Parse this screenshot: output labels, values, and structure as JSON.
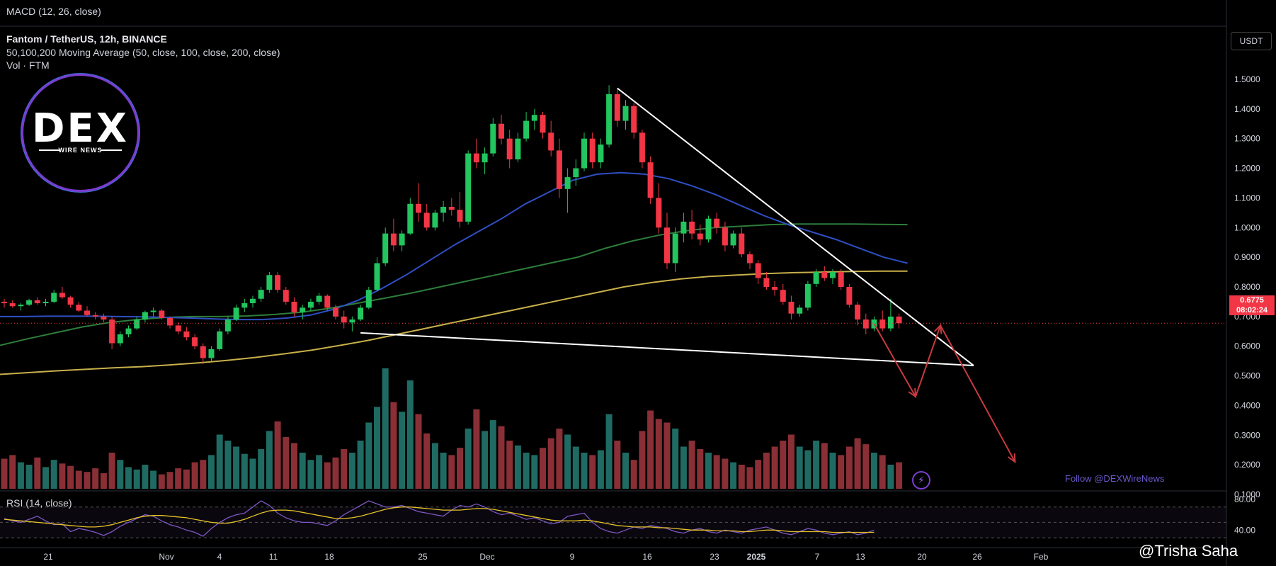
{
  "pane_titles": {
    "macd": "MACD (12, 26, close)",
    "rsi": "RSI (14, close)"
  },
  "header": {
    "symbol": "Fantom / TetherUS, 12h, BINANCE",
    "ma_study": "50,100,200 Moving Average (50, close, 100, close, 200, close)",
    "volume_study": "Vol · FTM"
  },
  "logo": {
    "text": "DEX",
    "subtext": "WIRE NEWS"
  },
  "currency_button": "USDT",
  "current_price": {
    "value": "0.6775",
    "countdown": "08:02:24",
    "color": "#f23645"
  },
  "follow_text": "Follow @DEXWireNews",
  "watermark": "@Trisha Saha",
  "colors": {
    "bull": "#22c55e",
    "bear": "#f23645",
    "ma50": "#2f4fc4",
    "ma100": "#2e7d3a",
    "ma200": "#c8b04a",
    "vol_bull": "#1f6b63",
    "vol_bear": "#8a2f36",
    "trendline": "#ffffff",
    "arrow": "#c93a3f",
    "rsi": "#7e57c2",
    "rsi_ma": "#e6c229"
  },
  "chart_data": {
    "type": "candlestick",
    "title": "Fantom / TetherUS, 12h, BINANCE",
    "timeframe": "12h",
    "price_axis": {
      "labels": [
        "1.5000",
        "1.4000",
        "1.3000",
        "1.2000",
        "1.1000",
        "1.0000",
        "0.9000",
        "0.8000",
        "0.7000",
        "0.6000",
        "0.5000",
        "0.4000",
        "0.3000",
        "0.2000",
        "0.1000"
      ],
      "range": [
        0.05,
        1.55
      ]
    },
    "time_axis": {
      "labels": [
        "21",
        "Nov",
        "4",
        "11",
        "18",
        "25",
        "Dec",
        "9",
        "16",
        "23",
        "2025",
        "7",
        "13",
        "20",
        "26",
        "Feb"
      ]
    },
    "rsi_axis": {
      "labels": [
        "80.00",
        "40.00"
      ]
    },
    "volume_max": 1.0,
    "candles": [
      [
        0.75,
        0.76,
        0.73,
        0.745
      ],
      [
        0.745,
        0.755,
        0.73,
        0.735
      ],
      [
        0.735,
        0.745,
        0.72,
        0.74
      ],
      [
        0.74,
        0.76,
        0.735,
        0.755
      ],
      [
        0.755,
        0.765,
        0.74,
        0.745
      ],
      [
        0.745,
        0.76,
        0.735,
        0.75
      ],
      [
        0.75,
        0.79,
        0.745,
        0.78
      ],
      [
        0.78,
        0.8,
        0.76,
        0.765
      ],
      [
        0.765,
        0.77,
        0.73,
        0.74
      ],
      [
        0.74,
        0.75,
        0.715,
        0.72
      ],
      [
        0.72,
        0.735,
        0.7,
        0.705
      ],
      [
        0.705,
        0.715,
        0.69,
        0.7
      ],
      [
        0.7,
        0.71,
        0.68,
        0.69
      ],
      [
        0.69,
        0.7,
        0.59,
        0.61
      ],
      [
        0.61,
        0.65,
        0.6,
        0.64
      ],
      [
        0.64,
        0.67,
        0.63,
        0.66
      ],
      [
        0.66,
        0.7,
        0.655,
        0.69
      ],
      [
        0.69,
        0.72,
        0.68,
        0.715
      ],
      [
        0.715,
        0.73,
        0.7,
        0.72
      ],
      [
        0.72,
        0.725,
        0.69,
        0.695
      ],
      [
        0.695,
        0.7,
        0.66,
        0.67
      ],
      [
        0.67,
        0.68,
        0.64,
        0.65
      ],
      [
        0.65,
        0.665,
        0.62,
        0.63
      ],
      [
        0.63,
        0.64,
        0.59,
        0.6
      ],
      [
        0.6,
        0.61,
        0.54,
        0.56
      ],
      [
        0.56,
        0.6,
        0.55,
        0.59
      ],
      [
        0.59,
        0.66,
        0.585,
        0.65
      ],
      [
        0.65,
        0.7,
        0.64,
        0.69
      ],
      [
        0.69,
        0.74,
        0.685,
        0.73
      ],
      [
        0.73,
        0.76,
        0.715,
        0.745
      ],
      [
        0.745,
        0.77,
        0.73,
        0.76
      ],
      [
        0.76,
        0.8,
        0.75,
        0.79
      ],
      [
        0.79,
        0.85,
        0.78,
        0.84
      ],
      [
        0.84,
        0.85,
        0.78,
        0.79
      ],
      [
        0.79,
        0.8,
        0.74,
        0.75
      ],
      [
        0.75,
        0.765,
        0.7,
        0.715
      ],
      [
        0.715,
        0.74,
        0.69,
        0.73
      ],
      [
        0.73,
        0.76,
        0.72,
        0.75
      ],
      [
        0.75,
        0.78,
        0.74,
        0.77
      ],
      [
        0.77,
        0.775,
        0.72,
        0.73
      ],
      [
        0.73,
        0.74,
        0.69,
        0.7
      ],
      [
        0.7,
        0.72,
        0.66,
        0.68
      ],
      [
        0.68,
        0.7,
        0.65,
        0.69
      ],
      [
        0.69,
        0.74,
        0.685,
        0.73
      ],
      [
        0.73,
        0.8,
        0.725,
        0.79
      ],
      [
        0.79,
        0.9,
        0.785,
        0.88
      ],
      [
        0.88,
        1.0,
        0.87,
        0.98
      ],
      [
        0.98,
        1.03,
        0.92,
        0.94
      ],
      [
        0.94,
        0.99,
        0.92,
        0.98
      ],
      [
        0.98,
        1.1,
        0.975,
        1.08
      ],
      [
        1.08,
        1.15,
        1.02,
        1.05
      ],
      [
        1.05,
        1.08,
        0.99,
        1.0
      ],
      [
        1.0,
        1.06,
        0.99,
        1.05
      ],
      [
        1.05,
        1.09,
        1.02,
        1.07
      ],
      [
        1.07,
        1.1,
        1.04,
        1.06
      ],
      [
        1.06,
        1.12,
        1.0,
        1.02
      ],
      [
        1.02,
        1.26,
        1.01,
        1.25
      ],
      [
        1.25,
        1.3,
        1.2,
        1.22
      ],
      [
        1.22,
        1.27,
        1.18,
        1.25
      ],
      [
        1.25,
        1.37,
        1.24,
        1.35
      ],
      [
        1.35,
        1.38,
        1.28,
        1.3
      ],
      [
        1.3,
        1.33,
        1.2,
        1.23
      ],
      [
        1.23,
        1.32,
        1.22,
        1.3
      ],
      [
        1.3,
        1.39,
        1.29,
        1.36
      ],
      [
        1.36,
        1.4,
        1.33,
        1.38
      ],
      [
        1.38,
        1.39,
        1.3,
        1.32
      ],
      [
        1.32,
        1.36,
        1.24,
        1.26
      ],
      [
        1.26,
        1.3,
        1.1,
        1.13
      ],
      [
        1.13,
        1.2,
        1.05,
        1.17
      ],
      [
        1.17,
        1.23,
        1.14,
        1.2
      ],
      [
        1.2,
        1.32,
        1.19,
        1.3
      ],
      [
        1.3,
        1.32,
        1.2,
        1.22
      ],
      [
        1.22,
        1.3,
        1.2,
        1.28
      ],
      [
        1.28,
        1.48,
        1.27,
        1.45
      ],
      [
        1.45,
        1.47,
        1.34,
        1.36
      ],
      [
        1.36,
        1.43,
        1.33,
        1.41
      ],
      [
        1.41,
        1.42,
        1.3,
        1.32
      ],
      [
        1.32,
        1.33,
        1.2,
        1.22
      ],
      [
        1.22,
        1.24,
        1.08,
        1.1
      ],
      [
        1.1,
        1.15,
        0.98,
        1.0
      ],
      [
        1.0,
        1.05,
        0.86,
        0.88
      ],
      [
        0.88,
        1.0,
        0.85,
        0.98
      ],
      [
        0.98,
        1.05,
        0.95,
        1.02
      ],
      [
        1.02,
        1.06,
        0.96,
        0.98
      ],
      [
        0.98,
        1.01,
        0.94,
        0.96
      ],
      [
        0.96,
        1.04,
        0.95,
        1.03
      ],
      [
        1.03,
        1.05,
        0.98,
        1.0
      ],
      [
        1.0,
        1.02,
        0.92,
        0.94
      ],
      [
        0.94,
        0.99,
        0.93,
        0.98
      ],
      [
        0.98,
        1.0,
        0.9,
        0.91
      ],
      [
        0.91,
        0.92,
        0.86,
        0.88
      ],
      [
        0.88,
        0.89,
        0.81,
        0.83
      ],
      [
        0.83,
        0.85,
        0.79,
        0.8
      ],
      [
        0.8,
        0.82,
        0.77,
        0.79
      ],
      [
        0.79,
        0.81,
        0.74,
        0.75
      ],
      [
        0.75,
        0.77,
        0.69,
        0.71
      ],
      [
        0.71,
        0.74,
        0.7,
        0.73
      ],
      [
        0.73,
        0.82,
        0.72,
        0.81
      ],
      [
        0.81,
        0.86,
        0.8,
        0.85
      ],
      [
        0.85,
        0.87,
        0.82,
        0.83
      ],
      [
        0.83,
        0.86,
        0.81,
        0.85
      ],
      [
        0.85,
        0.86,
        0.79,
        0.8
      ],
      [
        0.8,
        0.81,
        0.73,
        0.74
      ],
      [
        0.74,
        0.75,
        0.67,
        0.69
      ],
      [
        0.69,
        0.71,
        0.64,
        0.66
      ],
      [
        0.66,
        0.7,
        0.65,
        0.69
      ],
      [
        0.69,
        0.72,
        0.65,
        0.66
      ],
      [
        0.66,
        0.76,
        0.65,
        0.7
      ],
      [
        0.7,
        0.71,
        0.66,
        0.6775
      ]
    ],
    "ma50": [
      0.7,
      0.7,
      0.701,
      0.701,
      0.701,
      0.7,
      0.699,
      0.697,
      0.695,
      0.692,
      0.69,
      0.69,
      0.695,
      0.705,
      0.725,
      0.755,
      0.795,
      0.84,
      0.89,
      0.94,
      0.985,
      1.03,
      1.08,
      1.12,
      1.16,
      1.18,
      1.185,
      1.18,
      1.165,
      1.14,
      1.11,
      1.075,
      1.04,
      1.01,
      0.985,
      0.96,
      0.93,
      0.9,
      0.88
    ],
    "ma100": [
      0.603,
      0.625,
      0.645,
      0.665,
      0.68,
      0.69,
      0.697,
      0.7,
      0.7,
      0.702,
      0.707,
      0.715,
      0.728,
      0.745,
      0.762,
      0.78,
      0.8,
      0.82,
      0.84,
      0.86,
      0.88,
      0.9,
      0.93,
      0.955,
      0.975,
      0.99,
      1.0,
      1.005,
      1.01,
      1.012,
      1.012,
      1.012,
      1.011,
      1.01
    ],
    "ma200": [
      0.505,
      0.511,
      0.517,
      0.522,
      0.527,
      0.531,
      0.537,
      0.544,
      0.552,
      0.562,
      0.574,
      0.587,
      0.603,
      0.62,
      0.64,
      0.66,
      0.68,
      0.7,
      0.72,
      0.74,
      0.76,
      0.78,
      0.8,
      0.815,
      0.827,
      0.835,
      0.84,
      0.845,
      0.848,
      0.85,
      0.852,
      0.853,
      0.853
    ],
    "volume": [
      0.25,
      0.28,
      0.22,
      0.2,
      0.26,
      0.18,
      0.24,
      0.21,
      0.19,
      0.15,
      0.14,
      0.17,
      0.13,
      0.3,
      0.24,
      0.18,
      0.16,
      0.2,
      0.15,
      0.12,
      0.14,
      0.17,
      0.16,
      0.22,
      0.24,
      0.28,
      0.45,
      0.4,
      0.35,
      0.29,
      0.25,
      0.33,
      0.48,
      0.56,
      0.43,
      0.38,
      0.3,
      0.24,
      0.28,
      0.22,
      0.26,
      0.33,
      0.3,
      0.4,
      0.55,
      0.68,
      1.0,
      0.72,
      0.64,
      0.9,
      0.62,
      0.46,
      0.38,
      0.3,
      0.28,
      0.34,
      0.5,
      0.66,
      0.48,
      0.57,
      0.52,
      0.4,
      0.36,
      0.3,
      0.28,
      0.34,
      0.42,
      0.5,
      0.45,
      0.35,
      0.3,
      0.28,
      0.32,
      0.62,
      0.4,
      0.3,
      0.24,
      0.48,
      0.65,
      0.58,
      0.55,
      0.5,
      0.35,
      0.4,
      0.33,
      0.3,
      0.28,
      0.25,
      0.22,
      0.2,
      0.18,
      0.24,
      0.3,
      0.35,
      0.4,
      0.45,
      0.35,
      0.32,
      0.4,
      0.38,
      0.3,
      0.28,
      0.35,
      0.42,
      0.37,
      0.3,
      0.28,
      0.2,
      0.22
    ],
    "rsi": [
      55,
      52,
      50,
      54,
      58,
      52,
      47,
      48,
      38,
      42,
      40,
      37,
      33,
      38,
      45,
      50,
      55,
      60,
      58,
      52,
      47,
      44,
      40,
      37,
      32,
      42,
      50,
      56,
      60,
      62,
      70,
      78,
      72,
      62,
      56,
      52,
      50,
      50,
      48,
      46,
      52,
      60,
      66,
      72,
      78,
      74,
      70,
      70,
      72,
      68,
      64,
      62,
      60,
      58,
      66,
      72,
      70,
      74,
      70,
      64,
      60,
      62,
      58,
      54,
      56,
      52,
      48,
      50,
      58,
      60,
      62,
      50,
      42,
      38,
      36,
      40,
      44,
      42,
      46,
      44,
      42,
      38,
      36,
      40,
      42,
      38,
      36,
      40,
      38,
      36,
      40,
      42,
      44,
      40,
      36,
      34,
      38,
      42,
      40,
      36,
      34,
      36,
      38,
      34,
      36,
      40
    ],
    "rsi_ma": [
      54,
      53,
      52,
      51,
      50,
      49,
      48,
      47,
      46,
      45,
      44,
      44,
      45,
      47,
      50,
      53,
      56,
      58,
      59,
      59,
      58,
      57,
      56,
      54,
      52,
      50,
      49,
      49,
      51,
      54,
      58,
      62,
      65,
      66,
      66,
      65,
      63,
      61,
      59,
      57,
      55,
      55,
      56,
      58,
      61,
      64,
      67,
      69,
      70,
      70,
      69,
      68,
      67,
      66,
      66,
      66,
      67,
      68,
      68,
      67,
      65,
      63,
      61,
      59,
      57,
      55,
      53,
      52,
      52,
      52,
      53,
      52,
      50,
      48,
      46,
      45,
      44,
      44,
      44,
      43,
      43,
      42,
      41,
      40,
      40,
      40,
      39,
      39,
      39,
      38,
      38,
      39,
      40,
      40,
      39,
      38,
      38,
      38,
      38,
      38,
      37,
      37,
      37,
      37,
      37,
      37
    ],
    "trend_upper": {
      "from": [
        1.47,
        74
      ],
      "to": [
        0.535,
        117
      ]
    },
    "trend_lower": {
      "from": [
        0.645,
        43
      ],
      "to": [
        0.535,
        117
      ]
    },
    "projection_arrows": [
      [
        [
          0.675,
          105
        ],
        [
          0.43,
          110
        ],
        [
          0.67,
          113
        ],
        [
          0.21,
          122
        ]
      ]
    ]
  }
}
